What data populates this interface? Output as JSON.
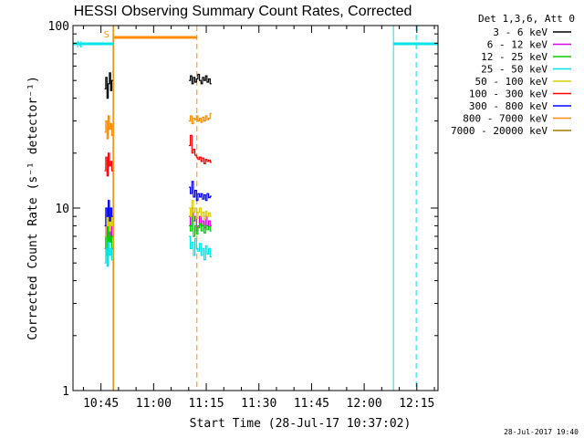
{
  "chart_data": {
    "type": "line",
    "title": "HESSI Observing Summary Count Rates, Corrected",
    "xlabel": "Start Time (28-Jul-17 10:37:02)",
    "ylabel": "Corrected Count Rate (s⁻¹ detector⁻¹)",
    "yscale": "log",
    "ylim": [
      1,
      100
    ],
    "xlim_minutes": [
      0,
      104
    ],
    "x_ticks": [
      {
        "label": "10:45",
        "minutes": 7.97
      },
      {
        "label": "11:00",
        "minutes": 22.97
      },
      {
        "label": "11:15",
        "minutes": 37.97
      },
      {
        "label": "11:30",
        "minutes": 52.97
      },
      {
        "label": "11:45",
        "minutes": 67.97
      },
      {
        "label": "12:00",
        "minutes": 82.97
      },
      {
        "label": "12:15",
        "minutes": 97.97
      }
    ],
    "y_ticks": [
      {
        "label": "1",
        "value": 1
      },
      {
        "label": "10",
        "value": 10
      },
      {
        "label": "100",
        "value": 100
      }
    ],
    "legend_title": "Det 1,3,6, Att 0",
    "segments": [
      {
        "start_minutes": 9.0,
        "end_minutes": 11.4
      },
      {
        "start_minutes": 33.0,
        "end_minutes": 39.5
      }
    ],
    "series": [
      {
        "name": "3 - 6 keV",
        "color": "#000000",
        "values": [
          [
            45,
            52,
            40,
            48,
            55,
            44,
            50
          ],
          [
            50,
            53,
            48,
            52,
            49,
            51,
            54,
            50,
            48,
            52,
            50,
            53,
            49,
            51,
            48
          ]
        ]
      },
      {
        "name": "6 - 12 keV",
        "color": "#e000e0",
        "values": [
          [
            6,
            8,
            7,
            9,
            6.5,
            8,
            7
          ],
          [
            9,
            8,
            10,
            8.5,
            9,
            7.5,
            8,
            9,
            8,
            8.5,
            7.8,
            9,
            8,
            8.5,
            8
          ]
        ]
      },
      {
        "name": "12 - 25 keV",
        "color": "#00d000",
        "values": [
          [
            6,
            7,
            5.5,
            8,
            6.5,
            7,
            6
          ],
          [
            8,
            7.5,
            9,
            7,
            8,
            7.2,
            7.8,
            8.2,
            7.5,
            8,
            7.3,
            8,
            7.6,
            7.9,
            7.5
          ]
        ]
      },
      {
        "name": "25 - 50 keV",
        "color": "#00e6e6",
        "values": [
          [
            5,
            6,
            4.8,
            6.5,
            5.5,
            6,
            5.2
          ],
          [
            7,
            6,
            6.5,
            5.5,
            6.8,
            6,
            5.8,
            6.4,
            5.5,
            6,
            5.2,
            6.2,
            5.6,
            6,
            5.4
          ]
        ]
      },
      {
        "name": "50 - 100 keV",
        "color": "#d8d000",
        "values": [
          [
            7,
            9,
            8,
            10,
            7.5,
            9,
            8
          ],
          [
            10,
            9,
            11,
            9.5,
            10,
            8.8,
            9.5,
            10,
            9,
            9.5,
            8.7,
            9.6,
            9,
            9.4,
            9
          ]
        ]
      },
      {
        "name": "100 - 300 keV",
        "color": "#ff0000",
        "values": [
          [
            16,
            19,
            15,
            20,
            17,
            18,
            16
          ],
          [
            22,
            25,
            20,
            21,
            19.5,
            19,
            18.5,
            19,
            18,
            18.8,
            17.5,
            18.5,
            18,
            18.3,
            17.8
          ]
        ]
      },
      {
        "name": "300 - 800 keV",
        "color": "#0000ff",
        "values": [
          [
            8,
            10,
            9,
            11,
            8.5,
            10,
            9
          ],
          [
            13,
            12,
            14,
            11.5,
            12.5,
            11,
            12,
            11.5,
            12,
            11.2,
            11.8,
            11,
            12,
            11.4,
            11.6
          ]
        ]
      },
      {
        "name": "800 - 7000 keV",
        "color": "#ff8c00",
        "values": [
          [
            26,
            30,
            24,
            32,
            27,
            29,
            25
          ],
          [
            30,
            32,
            29,
            31,
            30.5,
            32,
            30,
            31,
            29.5,
            31.5,
            30,
            32,
            30.5,
            31,
            33
          ]
        ]
      },
      {
        "name": "7000 - 20000 keV",
        "color": "#a07800",
        "values": []
      }
    ],
    "flags": [
      {
        "name": "saa",
        "label": "S",
        "color": "#ff8c00",
        "start_minutes": 11.6,
        "end_minutes": 35.3
      },
      {
        "name": "night",
        "label": "N",
        "color": "#00e6e6",
        "start_minutes": 0.0,
        "end_minutes": 11.6
      },
      {
        "name": "night-2",
        "label": "",
        "color": "#00e6e6",
        "start_minutes": 91.3,
        "end_minutes": 104.0
      }
    ],
    "vertical_lines": [
      {
        "name": "night-start-1",
        "minutes": 0.0,
        "color": "#00e6e6",
        "style": "solid"
      },
      {
        "name": "night-end-1",
        "minutes": 11.4,
        "color": "#00e6e6",
        "style": "solid"
      },
      {
        "name": "saa-start",
        "minutes": 11.6,
        "color": "#ff8c00",
        "style": "solid"
      },
      {
        "name": "saa-end",
        "minutes": 35.3,
        "color": "#ff8c00",
        "style": "dashed"
      },
      {
        "name": "night-start-2",
        "minutes": 91.3,
        "color": "#00e6e6",
        "style": "solid"
      },
      {
        "name": "night-end-2",
        "minutes": 97.8,
        "color": "#00e6e6",
        "style": "dashed"
      }
    ],
    "timestamp": "28-Jul-2017 19:40"
  }
}
